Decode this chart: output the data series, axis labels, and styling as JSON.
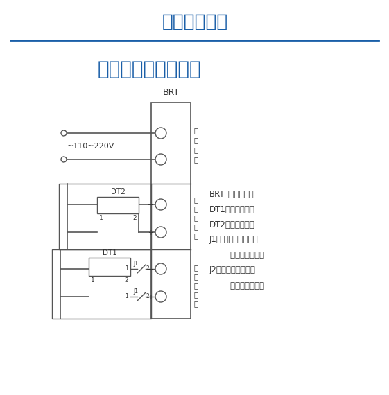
{
  "title1": "产品参数说明",
  "title2": "欠压失压线圈接线图",
  "brt_label": "BRT",
  "voltage_label": "~110~220V",
  "legend_lines": [
    "BRT：控制线路板",
    "DT1：欠压电磁铁",
    "DT2：闭锁电磁铁",
    "J1： 闭锁电磁铁微动",
    "        开关（常闭点）",
    "J2：闭锁电磁铁微动",
    "        开关（常闭点）"
  ],
  "section1_label": [
    "电",
    "源",
    "输",
    "入"
  ],
  "section2_label": [
    "闭",
    "锁",
    "电",
    "磁",
    "铁"
  ],
  "section3_label": [
    "欠",
    "压",
    "电",
    "磁",
    "铁"
  ],
  "bg_color": "#ffffff",
  "title1_color": "#1a5fa8",
  "title2_color": "#1a5fa8",
  "line_color": "#555555",
  "text_color": "#333333",
  "divider_color": "#1a5fa8"
}
